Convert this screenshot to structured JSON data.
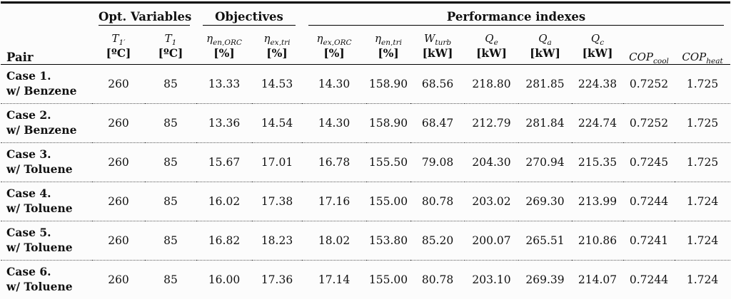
{
  "colors": {
    "text": "#111111",
    "rule": "#000000",
    "dotted_rule": "#555555",
    "background": "#fcfcfc"
  },
  "table": {
    "pair_header": "Pair",
    "groups": [
      "Opt. Variables",
      "Objectives",
      "Performance indexes"
    ],
    "columns": [
      {
        "sym": "T",
        "sub": "1′",
        "unit": "[ºC]"
      },
      {
        "sym": "T",
        "sub": "1",
        "unit": "[ºC]"
      },
      {
        "sym": "η",
        "sub": "en,ORC",
        "unit": "[%]"
      },
      {
        "sym": "η",
        "sub": "ex,tri",
        "unit": "[%]"
      },
      {
        "sym": "η",
        "sub": "ex,ORC",
        "unit": "[%]"
      },
      {
        "sym": "η",
        "sub": "en,tri",
        "unit": "[%]"
      },
      {
        "sym": "W",
        "sub": "turb",
        "unit": "[kW]"
      },
      {
        "sym": "Q",
        "sub": "e",
        "unit": "[kW]"
      },
      {
        "sym": "Q",
        "sub": "a",
        "unit": "[kW]"
      },
      {
        "sym": "Q",
        "sub": "c",
        "unit": "[kW]"
      },
      {
        "sym": "COP",
        "sub": "cool",
        "unit": ""
      },
      {
        "sym": "COP",
        "sub": "heat",
        "unit": ""
      }
    ],
    "rows": [
      {
        "case": "Case 1.",
        "fluid": "w/ Benzene",
        "values": [
          "260",
          "85",
          "13.33",
          "14.53",
          "14.30",
          "158.90",
          "68.56",
          "218.80",
          "281.85",
          "224.38",
          "0.7252",
          "1.725"
        ]
      },
      {
        "case": "Case 2.",
        "fluid": "w/ Benzene",
        "values": [
          "260",
          "85",
          "13.36",
          "14.54",
          "14.30",
          "158.90",
          "68.47",
          "212.79",
          "281.84",
          "224.74",
          "0.7252",
          "1.725"
        ]
      },
      {
        "case": "Case 3.",
        "fluid": "w/ Toluene",
        "values": [
          "260",
          "85",
          "15.67",
          "17.01",
          "16.78",
          "155.50",
          "79.08",
          "204.30",
          "270.94",
          "215.35",
          "0.7245",
          "1.725"
        ]
      },
      {
        "case": "Case 4.",
        "fluid": "w/ Toluene",
        "values": [
          "260",
          "85",
          "16.02",
          "17.38",
          "17.16",
          "155.00",
          "80.78",
          "203.02",
          "269.30",
          "213.99",
          "0.7244",
          "1.724"
        ]
      },
      {
        "case": "Case 5.",
        "fluid": "w/ Toluene",
        "values": [
          "260",
          "85",
          "16.82",
          "18.23",
          "18.02",
          "153.80",
          "85.20",
          "200.07",
          "265.51",
          "210.86",
          "0.7241",
          "1.724"
        ]
      },
      {
        "case": "Case 6.",
        "fluid": "w/ Toluene",
        "values": [
          "260",
          "85",
          "16.00",
          "17.36",
          "17.14",
          "155.00",
          "80.78",
          "203.10",
          "269.39",
          "214.07",
          "0.7244",
          "1.724"
        ]
      }
    ]
  }
}
